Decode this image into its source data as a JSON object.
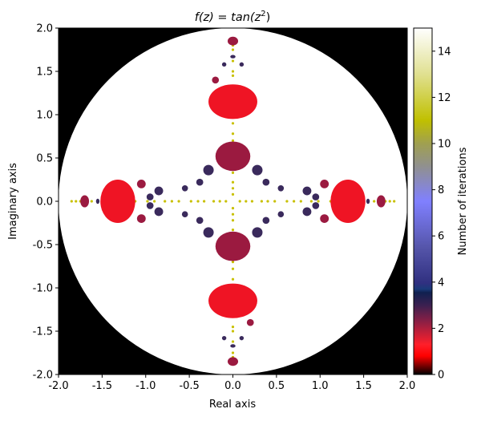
{
  "chart_data": {
    "type": "heatmap",
    "title_prefix": "f(z) = ",
    "title_func": "tan(z",
    "title_exp": "2",
    "title_close": ")",
    "xlabel": "Real axis",
    "ylabel": "Imaginary axis",
    "colorbar_label": "Number of iterations",
    "xlim": [
      -2.0,
      2.0
    ],
    "ylim": [
      -2.0,
      2.0
    ],
    "x_ticks": [
      "-2.0",
      "-1.5",
      "-1.0",
      "-0.5",
      "0.0",
      "0.5",
      "1.0",
      "1.5",
      "2.0"
    ],
    "y_ticks": [
      "2.0",
      "1.5",
      "1.0",
      "0.5",
      "0.0",
      "-0.5",
      "-1.0",
      "-1.5",
      "-2.0"
    ],
    "colorbar_range": [
      0,
      15
    ],
    "colorbar_ticks": [
      "0",
      "2",
      "4",
      "6",
      "8",
      "10",
      "12",
      "14"
    ],
    "colormap": "gist_stern",
    "colormap_stops": [
      {
        "v": 0.0,
        "c": "#000000"
      },
      {
        "v": 0.8,
        "c": "#ff0000"
      },
      {
        "v": 1.3,
        "c": "#ff1f2a"
      },
      {
        "v": 2.3,
        "c": "#8a1f45"
      },
      {
        "v": 3.0,
        "c": "#3b2050"
      },
      {
        "v": 3.55,
        "c": "#102050"
      },
      {
        "v": 3.7,
        "c": "#1a3a7a"
      },
      {
        "v": 3.95,
        "c": "#303080"
      },
      {
        "v": 5.5,
        "c": "#5555aa"
      },
      {
        "v": 7.5,
        "c": "#8080ff"
      },
      {
        "v": 9.0,
        "c": "#909090"
      },
      {
        "v": 10.0,
        "c": "#a0a050"
      },
      {
        "v": 11.0,
        "c": "#c0c000"
      },
      {
        "v": 13.0,
        "c": "#e0e090"
      },
      {
        "v": 15.0,
        "c": "#ffffff"
      }
    ],
    "escape_radius": 2.0,
    "colors": {
      "escaped": "#000000",
      "max_iter": "#ffffff",
      "near_blob": "#ef1424",
      "mid_blob": "#9b1a40",
      "small_blob": "#3a2a5c",
      "fractal_edge": "#c8c000"
    },
    "regions": [
      {
        "x": 0.0,
        "y": 1.15,
        "rx": 0.28,
        "ry": 0.2,
        "level": "near_blob"
      },
      {
        "x": 0.0,
        "y": -1.15,
        "rx": 0.28,
        "ry": 0.2,
        "level": "near_blob"
      },
      {
        "x": -1.32,
        "y": 0.0,
        "rx": 0.2,
        "ry": 0.25,
        "level": "near_blob"
      },
      {
        "x": 1.32,
        "y": 0.0,
        "rx": 0.2,
        "ry": 0.25,
        "level": "near_blob"
      },
      {
        "x": 0.0,
        "y": 0.52,
        "rx": 0.2,
        "ry": 0.17,
        "level": "mid_blob"
      },
      {
        "x": 0.0,
        "y": -0.52,
        "rx": 0.2,
        "ry": 0.17,
        "level": "mid_blob"
      },
      {
        "x": 0.0,
        "y": 1.85,
        "rx": 0.06,
        "ry": 0.05,
        "level": "mid_blob"
      },
      {
        "x": 0.0,
        "y": -1.85,
        "rx": 0.06,
        "ry": 0.05,
        "level": "mid_blob"
      },
      {
        "x": -1.7,
        "y": 0.0,
        "rx": 0.05,
        "ry": 0.07,
        "level": "mid_blob"
      },
      {
        "x": 1.7,
        "y": 0.0,
        "rx": 0.05,
        "ry": 0.07,
        "level": "mid_blob"
      },
      {
        "x": -1.05,
        "y": 0.2,
        "rx": 0.05,
        "ry": 0.05,
        "level": "mid_blob"
      },
      {
        "x": -1.05,
        "y": -0.2,
        "rx": 0.05,
        "ry": 0.05,
        "level": "mid_blob"
      },
      {
        "x": 1.05,
        "y": 0.2,
        "rx": 0.05,
        "ry": 0.05,
        "level": "mid_blob"
      },
      {
        "x": 1.05,
        "y": -0.2,
        "rx": 0.05,
        "ry": 0.05,
        "level": "mid_blob"
      },
      {
        "x": -0.2,
        "y": 1.4,
        "rx": 0.04,
        "ry": 0.04,
        "level": "mid_blob"
      },
      {
        "x": 0.2,
        "y": -1.4,
        "rx": 0.04,
        "ry": 0.04,
        "level": "mid_blob"
      },
      {
        "x": -0.85,
        "y": 0.12,
        "rx": 0.05,
        "ry": 0.05,
        "level": "small_blob"
      },
      {
        "x": -0.85,
        "y": -0.12,
        "rx": 0.05,
        "ry": 0.05,
        "level": "small_blob"
      },
      {
        "x": 0.85,
        "y": 0.12,
        "rx": 0.05,
        "ry": 0.05,
        "level": "small_blob"
      },
      {
        "x": 0.85,
        "y": -0.12,
        "rx": 0.05,
        "ry": 0.05,
        "level": "small_blob"
      },
      {
        "x": -0.95,
        "y": 0.05,
        "rx": 0.04,
        "ry": 0.04,
        "level": "small_blob"
      },
      {
        "x": -0.95,
        "y": -0.05,
        "rx": 0.04,
        "ry": 0.04,
        "level": "small_blob"
      },
      {
        "x": 0.95,
        "y": 0.05,
        "rx": 0.04,
        "ry": 0.04,
        "level": "small_blob"
      },
      {
        "x": 0.95,
        "y": -0.05,
        "rx": 0.04,
        "ry": 0.04,
        "level": "small_blob"
      },
      {
        "x": -0.28,
        "y": 0.36,
        "rx": 0.06,
        "ry": 0.06,
        "level": "small_blob"
      },
      {
        "x": 0.28,
        "y": 0.36,
        "rx": 0.06,
        "ry": 0.06,
        "level": "small_blob"
      },
      {
        "x": -0.28,
        "y": -0.36,
        "rx": 0.06,
        "ry": 0.06,
        "level": "small_blob"
      },
      {
        "x": 0.28,
        "y": -0.36,
        "rx": 0.06,
        "ry": 0.06,
        "level": "small_blob"
      },
      {
        "x": -0.55,
        "y": 0.15,
        "rx": 0.035,
        "ry": 0.035,
        "level": "small_blob"
      },
      {
        "x": 0.55,
        "y": 0.15,
        "rx": 0.035,
        "ry": 0.035,
        "level": "small_blob"
      },
      {
        "x": -0.55,
        "y": -0.15,
        "rx": 0.035,
        "ry": 0.035,
        "level": "small_blob"
      },
      {
        "x": 0.55,
        "y": -0.15,
        "rx": 0.035,
        "ry": 0.035,
        "level": "small_blob"
      },
      {
        "x": -0.38,
        "y": 0.22,
        "rx": 0.04,
        "ry": 0.04,
        "level": "small_blob"
      },
      {
        "x": 0.38,
        "y": 0.22,
        "rx": 0.04,
        "ry": 0.04,
        "level": "small_blob"
      },
      {
        "x": -0.38,
        "y": -0.22,
        "rx": 0.04,
        "ry": 0.04,
        "level": "small_blob"
      },
      {
        "x": 0.38,
        "y": -0.22,
        "rx": 0.04,
        "ry": 0.04,
        "level": "small_blob"
      },
      {
        "x": -0.1,
        "y": 1.58,
        "rx": 0.025,
        "ry": 0.025,
        "level": "small_blob"
      },
      {
        "x": 0.1,
        "y": 1.58,
        "rx": 0.025,
        "ry": 0.025,
        "level": "small_blob"
      },
      {
        "x": -0.1,
        "y": -1.58,
        "rx": 0.025,
        "ry": 0.025,
        "level": "small_blob"
      },
      {
        "x": 0.1,
        "y": -1.58,
        "rx": 0.025,
        "ry": 0.025,
        "level": "small_blob"
      },
      {
        "x": 0.0,
        "y": 1.67,
        "rx": 0.03,
        "ry": 0.02,
        "level": "small_blob"
      },
      {
        "x": 0.0,
        "y": -1.67,
        "rx": 0.03,
        "ry": 0.02,
        "level": "small_blob"
      },
      {
        "x": -1.55,
        "y": 0.0,
        "rx": 0.02,
        "ry": 0.03,
        "level": "small_blob"
      },
      {
        "x": 1.55,
        "y": 0.0,
        "rx": 0.02,
        "ry": 0.03,
        "level": "small_blob"
      }
    ]
  }
}
